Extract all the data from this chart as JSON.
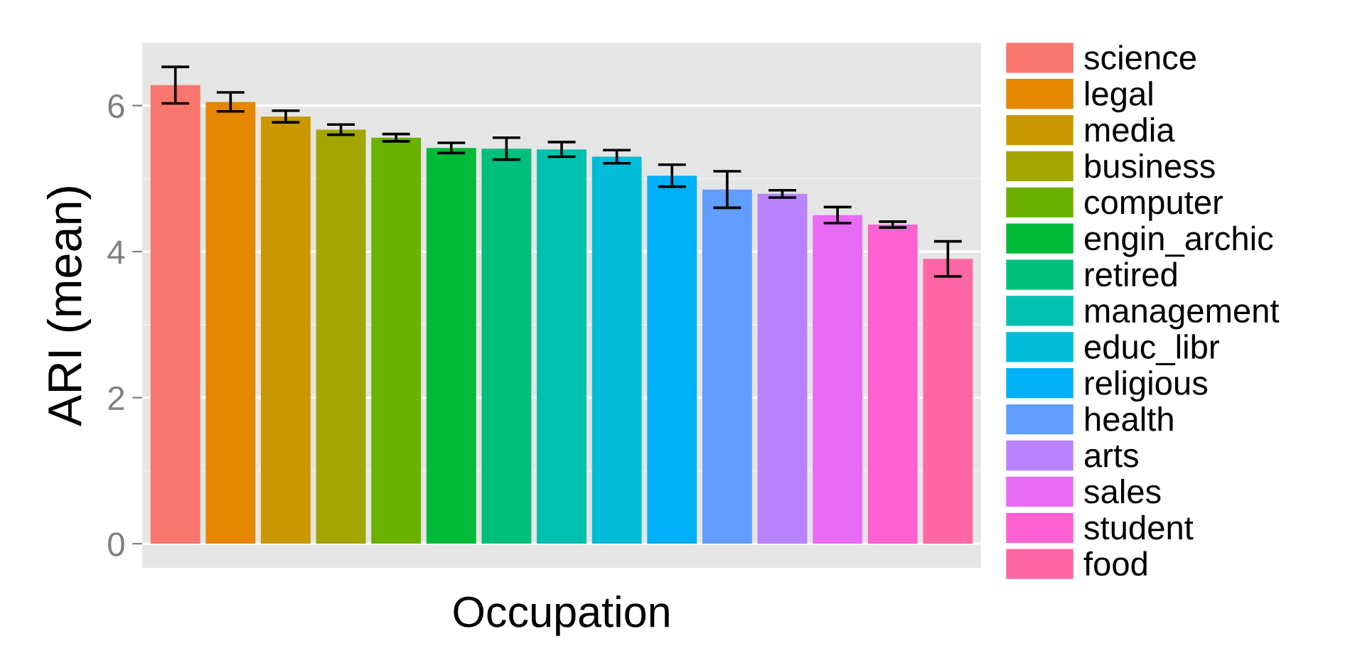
{
  "chart_data": {
    "type": "bar",
    "xlabel": "Occupation",
    "ylabel": "ARI (mean)",
    "categories": [
      null,
      null,
      null,
      null,
      null,
      null,
      null,
      null,
      null,
      null,
      null,
      null,
      null,
      null,
      null
    ],
    "series": [
      {
        "name": "science",
        "color": "#F8766D",
        "values": [
          6.28,
          null,
          null,
          null,
          null,
          null,
          null,
          null,
          null,
          null,
          null,
          null,
          null,
          null,
          null
        ],
        "errors": [
          0.25,
          null,
          null,
          null,
          null,
          null,
          null,
          null,
          null,
          null,
          null,
          null,
          null,
          null,
          null
        ]
      },
      {
        "name": "legal",
        "color": "#E58700",
        "values": [
          null,
          6.05,
          null,
          null,
          null,
          null,
          null,
          null,
          null,
          null,
          null,
          null,
          null,
          null,
          null
        ],
        "errors": [
          null,
          0.13,
          null,
          null,
          null,
          null,
          null,
          null,
          null,
          null,
          null,
          null,
          null,
          null,
          null
        ]
      },
      {
        "name": "media",
        "color": "#C99800",
        "values": [
          null,
          null,
          5.85,
          null,
          null,
          null,
          null,
          null,
          null,
          null,
          null,
          null,
          null,
          null,
          null
        ],
        "errors": [
          null,
          null,
          0.08,
          null,
          null,
          null,
          null,
          null,
          null,
          null,
          null,
          null,
          null,
          null,
          null
        ]
      },
      {
        "name": "business",
        "color": "#A3A500",
        "values": [
          null,
          null,
          null,
          5.67,
          null,
          null,
          null,
          null,
          null,
          null,
          null,
          null,
          null,
          null,
          null
        ],
        "errors": [
          null,
          null,
          null,
          0.07,
          null,
          null,
          null,
          null,
          null,
          null,
          null,
          null,
          null,
          null,
          null
        ]
      },
      {
        "name": "computer",
        "color": "#6BB100",
        "values": [
          null,
          null,
          null,
          null,
          5.56,
          null,
          null,
          null,
          null,
          null,
          null,
          null,
          null,
          null,
          null
        ],
        "errors": [
          null,
          null,
          null,
          null,
          0.05,
          null,
          null,
          null,
          null,
          null,
          null,
          null,
          null,
          null,
          null
        ]
      },
      {
        "name": "engin_archic",
        "color": "#00BA38",
        "values": [
          null,
          null,
          null,
          null,
          null,
          5.42,
          null,
          null,
          null,
          null,
          null,
          null,
          null,
          null,
          null
        ],
        "errors": [
          null,
          null,
          null,
          null,
          null,
          0.07,
          null,
          null,
          null,
          null,
          null,
          null,
          null,
          null,
          null
        ]
      },
      {
        "name": "retired",
        "color": "#00BF7D",
        "values": [
          null,
          null,
          null,
          null,
          null,
          null,
          5.41,
          null,
          null,
          null,
          null,
          null,
          null,
          null,
          null
        ],
        "errors": [
          null,
          null,
          null,
          null,
          null,
          null,
          0.15,
          null,
          null,
          null,
          null,
          null,
          null,
          null,
          null
        ]
      },
      {
        "name": "management",
        "color": "#00C0AF",
        "values": [
          null,
          null,
          null,
          null,
          null,
          null,
          null,
          5.4,
          null,
          null,
          null,
          null,
          null,
          null,
          null
        ],
        "errors": [
          null,
          null,
          null,
          null,
          null,
          null,
          null,
          0.1,
          null,
          null,
          null,
          null,
          null,
          null,
          null
        ]
      },
      {
        "name": "educ_libr",
        "color": "#00BCD8",
        "values": [
          null,
          null,
          null,
          null,
          null,
          null,
          null,
          null,
          5.3,
          null,
          null,
          null,
          null,
          null,
          null
        ],
        "errors": [
          null,
          null,
          null,
          null,
          null,
          null,
          null,
          null,
          0.09,
          null,
          null,
          null,
          null,
          null,
          null
        ]
      },
      {
        "name": "religious",
        "color": "#00B0F6",
        "values": [
          null,
          null,
          null,
          null,
          null,
          null,
          null,
          null,
          null,
          5.04,
          null,
          null,
          null,
          null,
          null
        ],
        "errors": [
          null,
          null,
          null,
          null,
          null,
          null,
          null,
          null,
          null,
          0.15,
          null,
          null,
          null,
          null,
          null
        ]
      },
      {
        "name": "health",
        "color": "#619CFF",
        "values": [
          null,
          null,
          null,
          null,
          null,
          null,
          null,
          null,
          null,
          null,
          4.85,
          null,
          null,
          null,
          null
        ],
        "errors": [
          null,
          null,
          null,
          null,
          null,
          null,
          null,
          null,
          null,
          null,
          0.25,
          null,
          null,
          null,
          null
        ]
      },
      {
        "name": "arts",
        "color": "#B983FF",
        "values": [
          null,
          null,
          null,
          null,
          null,
          null,
          null,
          null,
          null,
          null,
          null,
          4.79,
          null,
          null,
          null
        ],
        "errors": [
          null,
          null,
          null,
          null,
          null,
          null,
          null,
          null,
          null,
          null,
          null,
          0.05,
          null,
          null,
          null
        ]
      },
      {
        "name": "sales",
        "color": "#E76BF3",
        "values": [
          null,
          null,
          null,
          null,
          null,
          null,
          null,
          null,
          null,
          null,
          null,
          null,
          4.5,
          null,
          null
        ],
        "errors": [
          null,
          null,
          null,
          null,
          null,
          null,
          null,
          null,
          null,
          null,
          null,
          null,
          0.11,
          null,
          null
        ]
      },
      {
        "name": "student",
        "color": "#FD61D1",
        "values": [
          null,
          null,
          null,
          null,
          null,
          null,
          null,
          null,
          null,
          null,
          null,
          null,
          null,
          4.37,
          null
        ],
        "errors": [
          null,
          null,
          null,
          null,
          null,
          null,
          null,
          null,
          null,
          null,
          null,
          null,
          null,
          0.04,
          null
        ]
      },
      {
        "name": "food",
        "color": "#FF67A4",
        "values": [
          null,
          null,
          null,
          null,
          null,
          null,
          null,
          null,
          null,
          null,
          null,
          null,
          null,
          null,
          3.9
        ],
        "errors": [
          null,
          null,
          null,
          null,
          null,
          null,
          null,
          null,
          null,
          null,
          null,
          null,
          null,
          null,
          0.24
        ]
      }
    ],
    "ylim": [
      -0.33,
      6.86
    ],
    "yticks": [
      0,
      2,
      4,
      6
    ],
    "grid": "y",
    "legend": "right",
    "tick_labels": "y"
  }
}
